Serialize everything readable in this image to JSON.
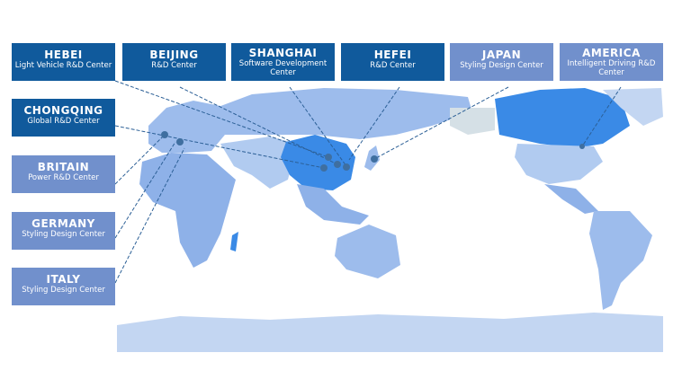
{
  "centers": [
    {
      "title": "HEBEI",
      "subtitle": "Light Vehicle R&D Center",
      "style": "dark"
    },
    {
      "title": "BEIJING",
      "subtitle": "R&D Center",
      "style": "dark"
    },
    {
      "title": "SHANGHAI",
      "subtitle": "Software Development Center",
      "style": "dark"
    },
    {
      "title": "HEFEI",
      "subtitle": "R&D Center",
      "style": "dark"
    },
    {
      "title": "JAPAN",
      "subtitle": "Styling Design Center",
      "style": "light"
    },
    {
      "title": "AMERICA",
      "subtitle": "Intelligent Driving R&D Center",
      "style": "light"
    },
    {
      "title": "CHONGQING",
      "subtitle": "Global R&D Center",
      "style": "dark"
    },
    {
      "title": "BRITAIN",
      "subtitle": "Power R&D Center",
      "style": "light"
    },
    {
      "title": "GERMANY",
      "subtitle": "Styling Design Center",
      "style": "light"
    },
    {
      "title": "ITALY",
      "subtitle": "Styling Design Center",
      "style": "light"
    }
  ],
  "colors": {
    "dark_box": "#105a9c",
    "light_box": "#7190cc",
    "highlight_country": "#3a8ae6",
    "land": "#9dbcec",
    "land_pale": "#c3d6f2",
    "pin": "#3f6fa0"
  },
  "icons": [
    "map-pin-icon"
  ]
}
